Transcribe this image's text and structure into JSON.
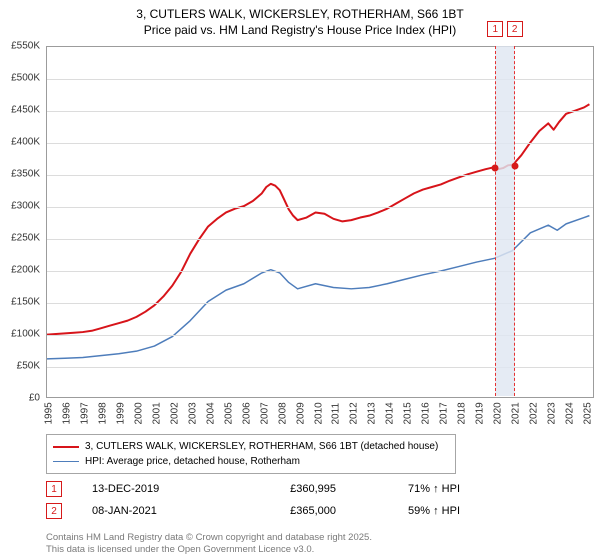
{
  "title": {
    "line1": "3, CUTLERS WALK, WICKERSLEY, ROTHERHAM, S66 1BT",
    "line2": "Price paid vs. HM Land Registry's House Price Index (HPI)",
    "fontsize": 12,
    "color": "#000000"
  },
  "chart": {
    "type": "line",
    "background_color": "#ffffff",
    "grid_color": "#dcdcdc",
    "border_color": "#9c9c9c",
    "axis_font_size": 10,
    "ylim": [
      0,
      550000
    ],
    "ytick_step": 50000,
    "yticks": [
      0,
      50000,
      100000,
      150000,
      200000,
      250000,
      300000,
      350000,
      400000,
      450000,
      500000,
      550000
    ],
    "ytick_labels": [
      "£0",
      "£50K",
      "£100K",
      "£150K",
      "£200K",
      "£250K",
      "£300K",
      "£350K",
      "£400K",
      "£450K",
      "£500K",
      "£550K"
    ],
    "x_years": [
      1995,
      1996,
      1997,
      1998,
      1999,
      2000,
      2001,
      2002,
      2003,
      2004,
      2005,
      2006,
      2007,
      2008,
      2009,
      2010,
      2011,
      2012,
      2013,
      2014,
      2015,
      2016,
      2017,
      2018,
      2019,
      2020,
      2021,
      2022,
      2023,
      2024,
      2025
    ],
    "xlim": [
      1995,
      2025.5
    ],
    "annotation_band": {
      "start_year": 2019.95,
      "end_year": 2021.03,
      "fill": "#dfe6f2",
      "border": "#e63232"
    },
    "series": [
      {
        "name": "price_paid",
        "label": "3, CUTLERS WALK, WICKERSLEY, ROTHERHAM, S66 1BT (detached house)",
        "color": "#d7141a",
        "line_width": 2,
        "points_by_year": [
          [
            1995,
            98000
          ],
          [
            1995.5,
            99000
          ],
          [
            1996,
            100000
          ],
          [
            1996.5,
            101000
          ],
          [
            1997,
            102000
          ],
          [
            1997.5,
            104000
          ],
          [
            1998,
            108000
          ],
          [
            1998.5,
            112000
          ],
          [
            1999,
            116000
          ],
          [
            1999.5,
            120000
          ],
          [
            2000,
            126000
          ],
          [
            2000.5,
            134000
          ],
          [
            2001,
            144000
          ],
          [
            2001.5,
            158000
          ],
          [
            2002,
            175000
          ],
          [
            2002.5,
            197000
          ],
          [
            2003,
            225000
          ],
          [
            2003.5,
            248000
          ],
          [
            2004,
            268000
          ],
          [
            2004.5,
            280000
          ],
          [
            2005,
            290000
          ],
          [
            2005.5,
            296000
          ],
          [
            2006,
            300000
          ],
          [
            2006.5,
            308000
          ],
          [
            2007,
            320000
          ],
          [
            2007.25,
            330000
          ],
          [
            2007.5,
            335000
          ],
          [
            2007.75,
            332000
          ],
          [
            2008,
            325000
          ],
          [
            2008.25,
            310000
          ],
          [
            2008.5,
            295000
          ],
          [
            2008.75,
            285000
          ],
          [
            2009,
            278000
          ],
          [
            2009.5,
            282000
          ],
          [
            2010,
            290000
          ],
          [
            2010.5,
            288000
          ],
          [
            2011,
            280000
          ],
          [
            2011.5,
            276000
          ],
          [
            2012,
            278000
          ],
          [
            2012.5,
            282000
          ],
          [
            2013,
            285000
          ],
          [
            2013.5,
            290000
          ],
          [
            2014,
            296000
          ],
          [
            2014.5,
            304000
          ],
          [
            2015,
            312000
          ],
          [
            2015.5,
            320000
          ],
          [
            2016,
            326000
          ],
          [
            2016.5,
            330000
          ],
          [
            2017,
            334000
          ],
          [
            2017.5,
            340000
          ],
          [
            2018,
            345000
          ],
          [
            2018.5,
            350000
          ],
          [
            2019,
            354000
          ],
          [
            2019.5,
            358000
          ],
          [
            2019.95,
            360995
          ],
          [
            2020.2,
            358000
          ],
          [
            2020.5,
            360000
          ],
          [
            2020.75,
            364000
          ],
          [
            2021.03,
            365000
          ],
          [
            2021.5,
            380000
          ],
          [
            2022,
            400000
          ],
          [
            2022.5,
            418000
          ],
          [
            2023,
            430000
          ],
          [
            2023.3,
            420000
          ],
          [
            2023.6,
            432000
          ],
          [
            2024,
            445000
          ],
          [
            2024.5,
            450000
          ],
          [
            2025,
            455000
          ],
          [
            2025.3,
            460000
          ]
        ]
      },
      {
        "name": "hpi",
        "label": "HPI: Average price, detached house, Rotherham",
        "color": "#4e7dbb",
        "line_width": 1.5,
        "points_by_year": [
          [
            1995,
            60000
          ],
          [
            1996,
            61000
          ],
          [
            1997,
            62000
          ],
          [
            1998,
            65000
          ],
          [
            1999,
            68000
          ],
          [
            2000,
            72000
          ],
          [
            2001,
            80000
          ],
          [
            2002,
            95000
          ],
          [
            2003,
            120000
          ],
          [
            2004,
            150000
          ],
          [
            2005,
            168000
          ],
          [
            2006,
            178000
          ],
          [
            2007,
            195000
          ],
          [
            2007.5,
            200000
          ],
          [
            2008,
            195000
          ],
          [
            2008.5,
            180000
          ],
          [
            2009,
            170000
          ],
          [
            2010,
            178000
          ],
          [
            2011,
            172000
          ],
          [
            2012,
            170000
          ],
          [
            2013,
            172000
          ],
          [
            2014,
            178000
          ],
          [
            2015,
            185000
          ],
          [
            2016,
            192000
          ],
          [
            2017,
            198000
          ],
          [
            2018,
            205000
          ],
          [
            2019,
            212000
          ],
          [
            2020,
            218000
          ],
          [
            2021,
            230000
          ],
          [
            2022,
            258000
          ],
          [
            2023,
            270000
          ],
          [
            2023.5,
            262000
          ],
          [
            2024,
            272000
          ],
          [
            2025,
            282000
          ],
          [
            2025.3,
            285000
          ]
        ]
      }
    ],
    "price_points": [
      {
        "n": "1",
        "year": 2019.95,
        "value": 360995,
        "color": "#d61a1a"
      },
      {
        "n": "2",
        "year": 2021.03,
        "value": 365000,
        "color": "#d61a1a"
      }
    ]
  },
  "legend": {
    "border": "#a6a6a6",
    "items": [
      {
        "color": "#d7141a",
        "width": 2,
        "label": "3, CUTLERS WALK, WICKERSLEY, ROTHERHAM, S66 1BT (detached house)"
      },
      {
        "color": "#4e7dbb",
        "width": 1.5,
        "label": "HPI: Average price, detached house, Rotherham"
      }
    ]
  },
  "price_rows": [
    {
      "n": "1",
      "date": "13-DEC-2019",
      "price": "£360,995",
      "pct": "71% ↑ HPI"
    },
    {
      "n": "2",
      "date": "08-JAN-2021",
      "price": "£365,000",
      "pct": "59% ↑ HPI"
    }
  ],
  "footnote": {
    "line1": "Contains HM Land Registry data © Crown copyright and database right 2025.",
    "line2": "This data is licensed under the Open Government Licence v3.0.",
    "color": "#7a7a7a"
  }
}
